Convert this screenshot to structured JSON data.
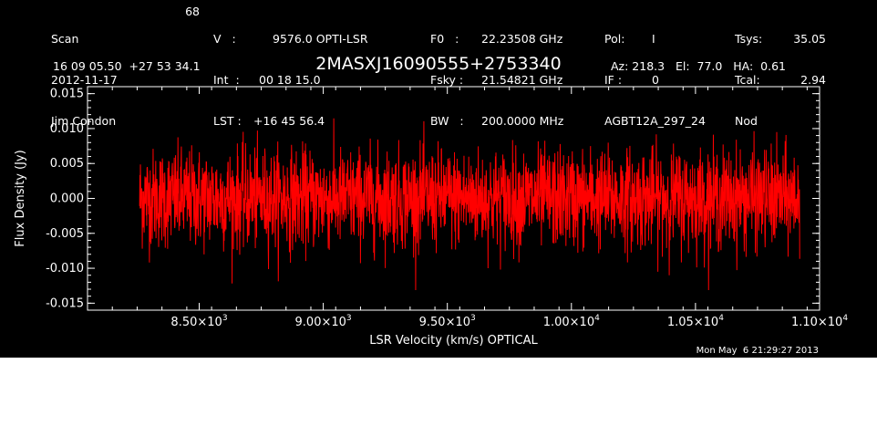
{
  "header": {
    "col1": [
      "Scan",
      "2012-11-17",
      "Jim Condon"
    ],
    "col1_value": "68",
    "col2_label": [
      "V   :",
      "Int  :",
      "LST :"
    ],
    "col2_value": [
      "9576.0 OPTI-LSR",
      "00 18 15.0",
      "+16 45 56.4"
    ],
    "col3_label": [
      "F0   :",
      "Fsky :",
      "BW   :"
    ],
    "col3_value": [
      "22.23508 GHz",
      "21.54821 GHz",
      "200.0000 MHz"
    ],
    "col4_label": [
      "Pol:",
      "IF :",
      "AGBT12A_297_24"
    ],
    "col4_value": [
      "I",
      "0"
    ],
    "col5_label": [
      "Tsys:",
      "Tcal:",
      "Nod"
    ],
    "col5_value": [
      "35.05",
      "2.94"
    ],
    "sky_position": "16 09 05.50  +27 53 34.1",
    "source": "2MASXJ16090555+2753340",
    "az_el_ha": "Az: 218.3   El:  77.0   HA:  0.61"
  },
  "timestamp": "Mon May  6 21:29:27 2013",
  "colors": {
    "background": "#000000",
    "foreground": "#ffffff",
    "series": "#ff0000"
  },
  "chart_data": {
    "type": "line",
    "title": "2MASXJ16090555+2753340",
    "xlabel": "LSR Velocity (km/s) OPTICAL",
    "ylabel": "Flux Density (Jy)",
    "xlim": [
      8050,
      11000
    ],
    "ylim": [
      -0.016,
      0.016
    ],
    "x_ticks": [
      8500,
      9000,
      9500,
      10000,
      10500,
      11000
    ],
    "x_tick_labels": [
      {
        "mantissa": "8.50",
        "exp": "3"
      },
      {
        "mantissa": "9.00",
        "exp": "3"
      },
      {
        "mantissa": "9.50",
        "exp": "3"
      },
      {
        "mantissa": "1.00",
        "exp": "4"
      },
      {
        "mantissa": "1.05",
        "exp": "4"
      },
      {
        "mantissa": "1.10",
        "exp": "4"
      }
    ],
    "y_ticks": [
      -0.015,
      -0.01,
      -0.005,
      0.0,
      0.005,
      0.01,
      0.015
    ],
    "y_tick_labels": [
      "-0.015",
      "-0.010",
      "-0.005",
      "0.000",
      "0.005",
      "0.010",
      "0.015"
    ],
    "series": [
      {
        "x_range": [
          8260,
          10920
        ],
        "n_points": 2500,
        "mean": 0.0,
        "rms": 0.0035
      }
    ]
  }
}
